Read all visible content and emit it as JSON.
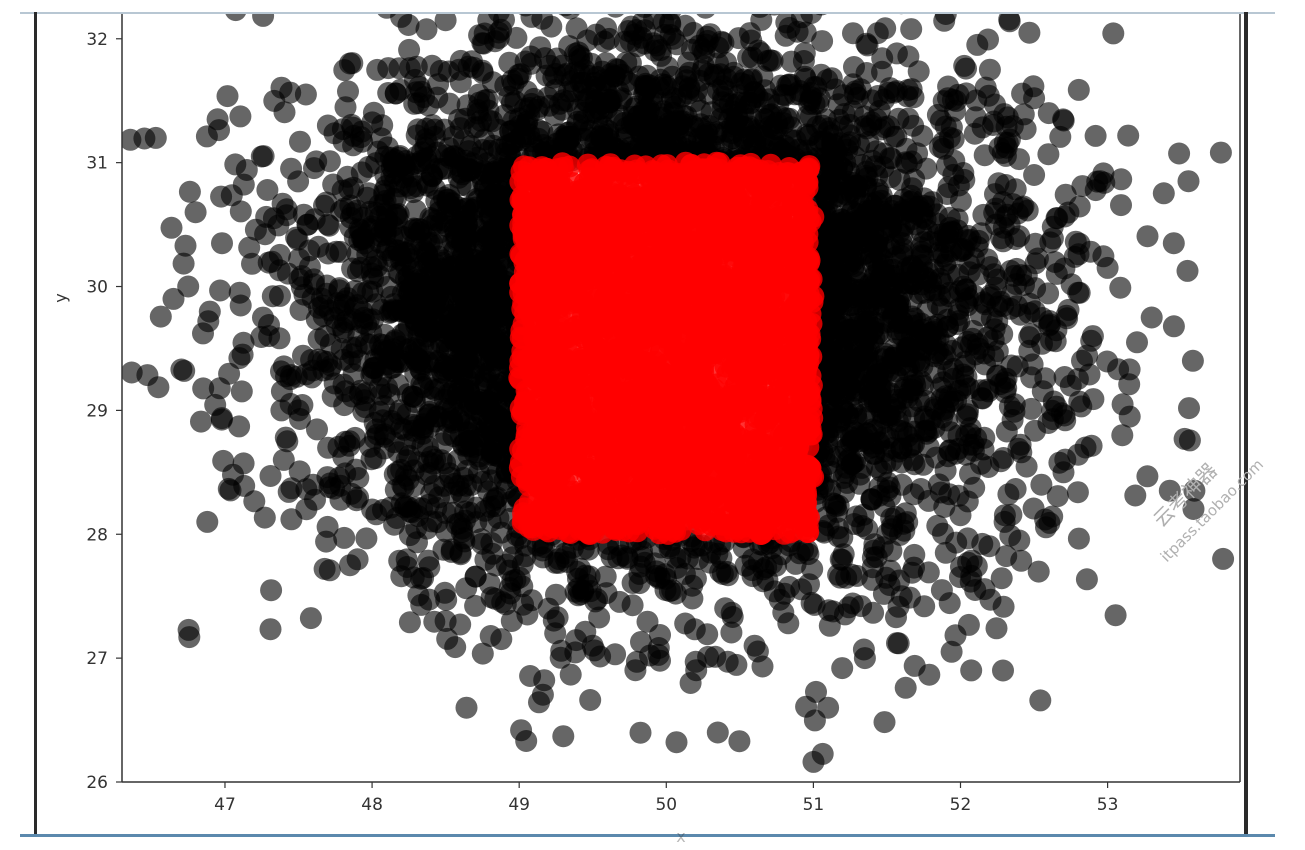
{
  "chart_data": {
    "type": "scatter",
    "title": "",
    "xlabel": "x",
    "ylabel": "y",
    "xlim": [
      46.3,
      53.9
    ],
    "ylim": [
      26,
      32.2
    ],
    "xticks": [
      47,
      48,
      49,
      50,
      51,
      52,
      53
    ],
    "yticks": [
      26,
      27,
      28,
      29,
      30,
      31,
      32
    ],
    "grid": false,
    "legend": "none",
    "series": [
      {
        "color": "#000000",
        "marker": "circle",
        "alpha": 0.6,
        "distribution_center": [
          50.0,
          29.8
        ],
        "points": [
          [
            46.65,
            29.9
          ],
          [
            46.75,
            30.0
          ],
          [
            46.8,
            30.6
          ],
          [
            46.88,
            28.1
          ],
          [
            46.95,
            31.35
          ],
          [
            46.98,
            30.35
          ],
          [
            47.1,
            29.95
          ],
          [
            47.12,
            29.45
          ],
          [
            47.25,
            31.05
          ],
          [
            47.3,
            29.6
          ],
          [
            47.32,
            30.2
          ],
          [
            47.4,
            28.6
          ],
          [
            47.5,
            29.0
          ],
          [
            47.55,
            31.55
          ],
          [
            47.6,
            28.4
          ],
          [
            47.7,
            30.5
          ],
          [
            47.85,
            27.75
          ],
          [
            47.9,
            29.85
          ],
          [
            48.0,
            28.2
          ],
          [
            48.2,
            28.25
          ],
          [
            48.3,
            28.05
          ],
          [
            48.5,
            27.3
          ],
          [
            48.6,
            27.85
          ],
          [
            48.8,
            27.6
          ],
          [
            48.95,
            27.3
          ],
          [
            49.2,
            27.4
          ],
          [
            49.3,
            26.37
          ],
          [
            49.5,
            27.1
          ],
          [
            49.8,
            26.97
          ],
          [
            50.2,
            26.97
          ],
          [
            50.35,
            26.4
          ],
          [
            50.6,
            27.1
          ],
          [
            51.1,
            26.6
          ],
          [
            51.35,
            27.0
          ],
          [
            51.6,
            27.5
          ],
          [
            51.9,
            27.85
          ],
          [
            52.1,
            27.55
          ],
          [
            52.3,
            28.1
          ],
          [
            52.4,
            27.95
          ],
          [
            52.55,
            28.4
          ],
          [
            52.7,
            28.5
          ],
          [
            52.75,
            29.2
          ],
          [
            52.85,
            28.7
          ],
          [
            52.9,
            29.6
          ],
          [
            52.95,
            30.85
          ],
          [
            53.0,
            30.15
          ],
          [
            53.1,
            28.8
          ],
          [
            53.15,
            28.95
          ],
          [
            53.2,
            29.55
          ],
          [
            53.3,
            29.75
          ],
          [
            53.45,
            30.35
          ],
          [
            53.55,
            30.85
          ],
          [
            53.58,
            29.4
          ],
          [
            52.6,
            31.4
          ],
          [
            52.2,
            31.75
          ],
          [
            51.9,
            32.2
          ],
          [
            47.85,
            31.8
          ],
          [
            48.1,
            32.25
          ],
          [
            52.5,
            30.9
          ],
          [
            52.8,
            29.95
          ],
          [
            47.7,
            31.3
          ],
          [
            48.5,
            32.15
          ]
        ],
        "dense_region": {
          "x": [
            48.2,
            51.9
          ],
          "y": [
            27.4,
            32.2
          ]
        }
      },
      {
        "color": "#ff0000",
        "marker": "circle",
        "alpha": 0.8,
        "uniform_region": {
          "x": [
            49,
            51
          ],
          "y": [
            28,
            31
          ]
        }
      }
    ]
  },
  "watermark": {
    "line1": "云考神器",
    "line2": "itpass.taobao.com"
  }
}
